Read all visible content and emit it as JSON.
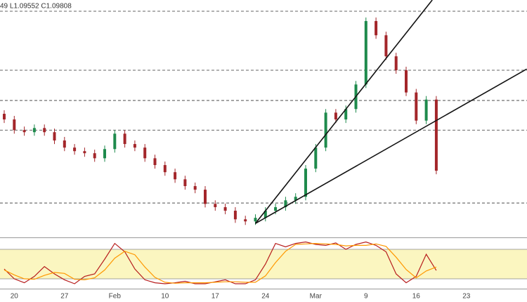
{
  "chart_data": [
    {
      "type": "candlestick",
      "header": "49 L1.09552 C1.09808",
      "categories": [
        null,
        "20",
        null,
        null,
        null,
        null,
        "27",
        null,
        null,
        null,
        null,
        "Feb",
        null,
        null,
        null,
        null,
        "10",
        null,
        null,
        null,
        null,
        "17",
        null,
        null,
        null,
        null,
        "24",
        null,
        null,
        null,
        null,
        "Mar",
        null,
        null,
        null,
        null,
        "9",
        null,
        null,
        null,
        null,
        "16",
        null,
        null,
        null,
        null,
        "23",
        null,
        null,
        null,
        null,
        null,
        null
      ],
      "open": [
        1.115,
        1.1131,
        1.1095,
        1.1088,
        1.1102,
        1.1088,
        1.106,
        1.1036,
        1.1024,
        1.1017,
        1.1,
        1.1031,
        1.1083,
        1.1048,
        1.1036,
        1.1,
        1.0977,
        1.0953,
        1.0929,
        1.0906,
        1.0894,
        1.0846,
        1.0835,
        1.0823,
        1.0794,
        1.0787,
        1.0799,
        1.0823,
        1.0835,
        1.0858,
        1.087,
        1.0965,
        1.1036,
        1.1154,
        1.1131,
        1.1166,
        1.1249,
        1.1463,
        1.1415,
        1.1344,
        1.1297,
        1.1222,
        1.1127,
        1.1198,
        null,
        null,
        null,
        null,
        null,
        null,
        null,
        null,
        null
      ],
      "high": [
        1.1162,
        1.1143,
        1.1107,
        1.1114,
        1.1114,
        1.11,
        1.1072,
        1.1048,
        1.1036,
        1.1029,
        1.1043,
        1.1095,
        1.1095,
        1.106,
        1.1048,
        1.1012,
        1.0989,
        1.0965,
        1.0941,
        1.0918,
        1.0906,
        1.0858,
        1.0847,
        1.0835,
        1.0806,
        1.0811,
        1.0835,
        1.0847,
        1.087,
        1.0882,
        1.0977,
        1.1048,
        1.1166,
        1.1166,
        1.1178,
        1.1261,
        1.1475,
        1.1475,
        1.1427,
        1.1356,
        1.1309,
        1.1234,
        1.121,
        1.121,
        null,
        null,
        null,
        null,
        null,
        null,
        null,
        null,
        null
      ],
      "low": [
        1.1119,
        1.1083,
        1.1076,
        1.1076,
        1.1076,
        1.1048,
        1.1024,
        1.1012,
        1.1005,
        1.0988,
        1.0988,
        1.1019,
        1.1036,
        1.1024,
        1.0988,
        1.0965,
        1.0941,
        1.0917,
        1.0894,
        1.0882,
        1.0834,
        1.0823,
        1.0811,
        1.0782,
        1.0775,
        1.0775,
        1.0787,
        1.0811,
        1.0823,
        1.0846,
        1.0858,
        1.0953,
        1.1024,
        1.1119,
        1.1119,
        1.1154,
        1.1237,
        1.1403,
        1.1332,
        1.1285,
        1.121,
        1.1115,
        1.1115,
        1.0946,
        null,
        null,
        null,
        null,
        null,
        null,
        null,
        null,
        null
      ],
      "close": [
        1.1131,
        1.1095,
        1.1088,
        1.1102,
        1.1088,
        1.106,
        1.1036,
        1.1024,
        1.1017,
        1.1,
        1.1031,
        1.1083,
        1.1048,
        1.1036,
        1.1,
        1.0977,
        1.0953,
        1.0929,
        1.0906,
        1.0894,
        1.0846,
        1.0835,
        1.0823,
        1.0794,
        1.0787,
        1.0799,
        1.0823,
        1.0835,
        1.0858,
        1.087,
        1.0965,
        1.1036,
        1.1154,
        1.1131,
        1.1166,
        1.1249,
        1.1463,
        1.1415,
        1.1344,
        1.1297,
        1.1222,
        1.1127,
        1.1198,
        1.0958,
        null,
        null,
        null,
        null,
        null,
        null,
        null,
        null,
        null
      ],
      "ylim": [
        1.0733,
        1.1534
      ],
      "up_color": "#1e8a4c",
      "down_color": "#a3262a",
      "levels": [
        1.1496,
        1.1297,
        1.1195,
        1.1095,
        1.0849
      ],
      "level_color": "#333333",
      "trendlines": [
        [
          [
            25,
            1.078
          ],
          [
            42.6,
            1.1534
          ]
        ],
        [
          [
            25,
            1.078
          ],
          [
            52,
            1.1301
          ]
        ]
      ],
      "trend_color": "#111111"
    },
    {
      "type": "line",
      "ylim": [
        0,
        100
      ],
      "band": [
        20,
        80
      ],
      "band_color": "#fbf6c0",
      "series": [
        {
          "color": "#b71c1c",
          "values": [
            40,
            20,
            12,
            25,
            45,
            30,
            18,
            10,
            25,
            30,
            60,
            92,
            75,
            40,
            18,
            12,
            10,
            12,
            15,
            10,
            10,
            14,
            18,
            10,
            10,
            18,
            50,
            92,
            85,
            92,
            95,
            90,
            88,
            93,
            80,
            90,
            95,
            88,
            75,
            30,
            12,
            25,
            70,
            37,
            null,
            null,
            null,
            null,
            null,
            null,
            null,
            null,
            null
          ]
        },
        {
          "color": "#ff9800",
          "values": [
            38,
            28,
            20,
            19,
            27,
            33,
            31,
            19,
            18,
            22,
            38,
            62,
            76,
            69,
            44,
            23,
            13,
            11,
            12,
            12,
            12,
            13,
            14,
            14,
            13,
            13,
            26,
            53,
            76,
            90,
            91,
            92,
            91,
            90,
            87,
            88,
            88,
            91,
            86,
            64,
            39,
            22,
            36,
            44,
            null,
            null,
            null,
            null,
            null,
            null,
            null,
            null,
            null
          ]
        }
      ]
    }
  ]
}
